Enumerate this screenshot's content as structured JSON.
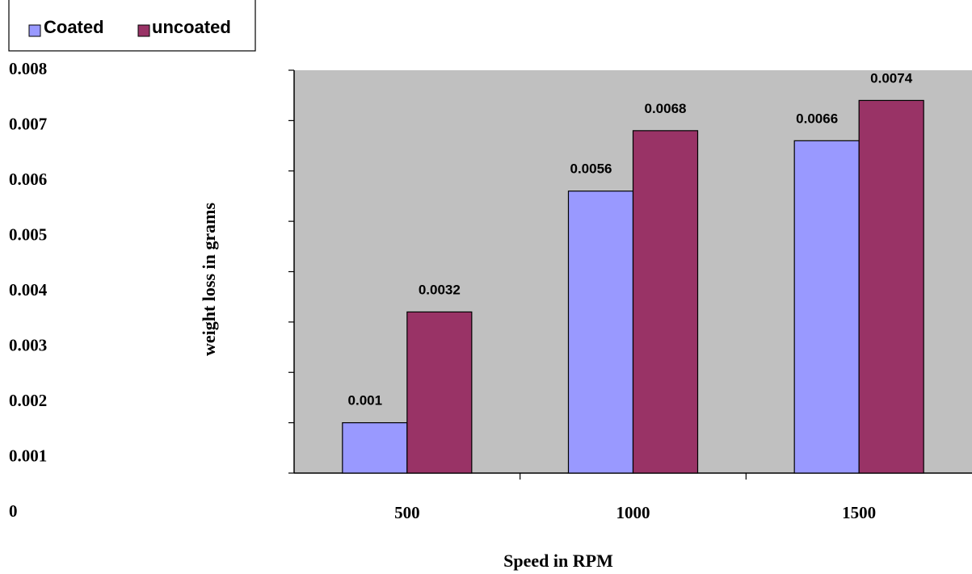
{
  "chart_data": {
    "type": "bar",
    "categories": [
      "500",
      "1000",
      "1500"
    ],
    "series": [
      {
        "name": "Coated",
        "values": [
          0.001,
          0.0056,
          0.0066
        ],
        "color": "#9999ff"
      },
      {
        "name": "uncoated",
        "values": [
          0.0032,
          0.0068,
          0.0074
        ],
        "color": "#993366"
      }
    ],
    "data_labels": [
      [
        "0.001",
        "0.0056",
        "0.0066"
      ],
      [
        "0.0032",
        "0.0068",
        "0.0074"
      ]
    ],
    "y_ticks": [
      "0",
      "0.001",
      "0.002",
      "0.003",
      "0.004",
      "0.005",
      "0.006",
      "0.007",
      "0.008"
    ],
    "ylim": [
      0,
      0.008
    ],
    "xlabel": "Speed in RPM",
    "ylabel": "weight loss in grams",
    "legend_position": "top-left",
    "plot_background": "#c0c0c0",
    "grid": false
  }
}
